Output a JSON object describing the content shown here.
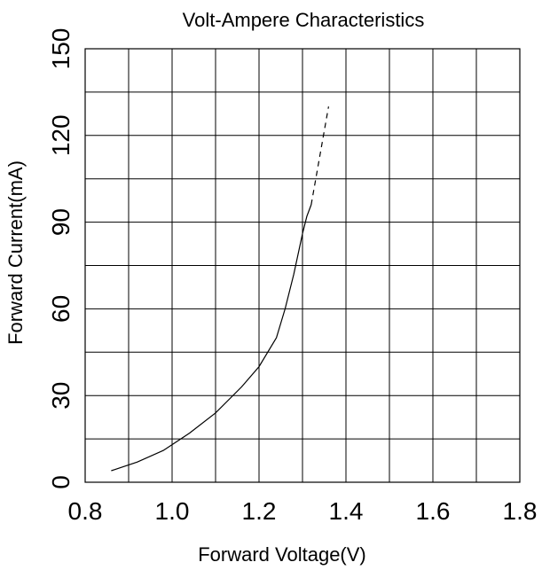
{
  "chart_data": {
    "type": "line",
    "title": "Volt-Ampere Characteristics",
    "xlabel": "Forward Voltage(V)",
    "ylabel": "Forward Current(mA)",
    "xlim": [
      0.8,
      1.8
    ],
    "ylim": [
      0,
      150
    ],
    "x_ticks": [
      "0.8",
      "1.0",
      "1.2",
      "1.4",
      "1.6",
      "1.8"
    ],
    "y_ticks": [
      "0",
      "30",
      "60",
      "90",
      "120",
      "150"
    ],
    "grid": true,
    "series": [
      {
        "style": "solid",
        "x": [
          0.86,
          0.92,
          0.98,
          1.04,
          1.1,
          1.16,
          1.2,
          1.24,
          1.26,
          1.28,
          1.3,
          1.31,
          1.32
        ],
        "y": [
          4,
          7,
          11,
          17,
          24,
          33,
          40,
          50,
          60,
          72,
          86,
          92,
          96
        ]
      },
      {
        "style": "dashed",
        "x": [
          1.32,
          1.34,
          1.36
        ],
        "y": [
          96,
          113,
          130
        ]
      }
    ]
  }
}
